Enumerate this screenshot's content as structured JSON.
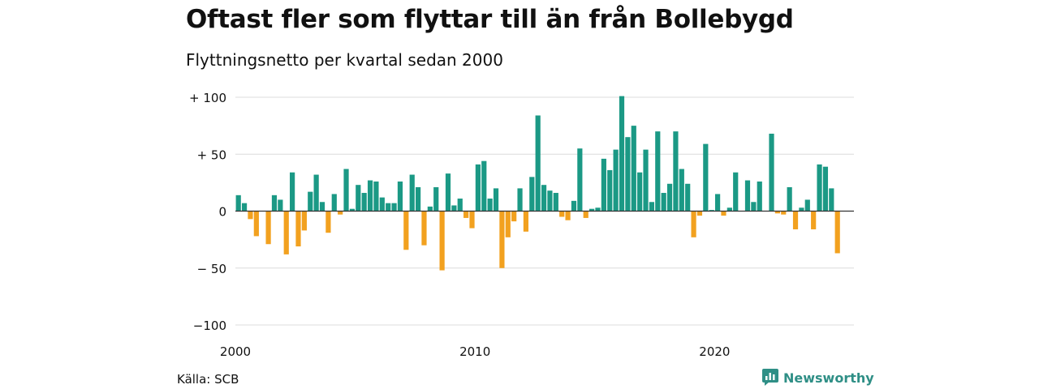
{
  "title": "Oftast fler som flyttar till än från Bollebygd",
  "subtitle": "Flyttningsnetto per kvartal sedan 2000",
  "source": "Källa: SCB",
  "brand": {
    "name": "Newsworthy",
    "icon": "newsworthy-logo-icon"
  },
  "colors": {
    "positive": "#1b9985",
    "negative": "#f2a11f",
    "grid": "#dcdcdc",
    "zero_line": "#333333"
  },
  "chart_data": {
    "type": "bar",
    "x_tick_labels": [
      "2000",
      "2010",
      "2020"
    ],
    "y_tick_labels": [
      "+ 100",
      "+  50",
      "0",
      "− 50",
      "−100"
    ],
    "y_ticks": [
      100,
      50,
      0,
      -50,
      -100
    ],
    "ylim": [
      -100,
      100
    ],
    "grid": true,
    "start_year": 2000,
    "values": [
      14,
      7,
      -7,
      -22,
      0,
      -29,
      14,
      10,
      -38,
      34,
      -31,
      -17,
      17,
      32,
      8,
      -19,
      15,
      -3,
      37,
      2,
      23,
      16,
      27,
      26,
      12,
      7,
      7,
      26,
      -34,
      32,
      21,
      -30,
      4,
      21,
      -52,
      33,
      5,
      11,
      -6,
      -15,
      41,
      44,
      11,
      20,
      -50,
      -23,
      -9,
      20,
      -18,
      30,
      84,
      23,
      18,
      16,
      -5,
      -8,
      9,
      55,
      -6,
      2,
      3,
      46,
      36,
      54,
      101,
      65,
      75,
      34,
      54,
      8,
      70,
      16,
      24,
      70,
      37,
      24,
      -23,
      -4,
      59,
      1,
      15,
      -4,
      3,
      34,
      0,
      27,
      8,
      26,
      0,
      68,
      -2,
      -3,
      21,
      -16,
      3,
      10,
      -16,
      41,
      39,
      20,
      -37
    ]
  }
}
